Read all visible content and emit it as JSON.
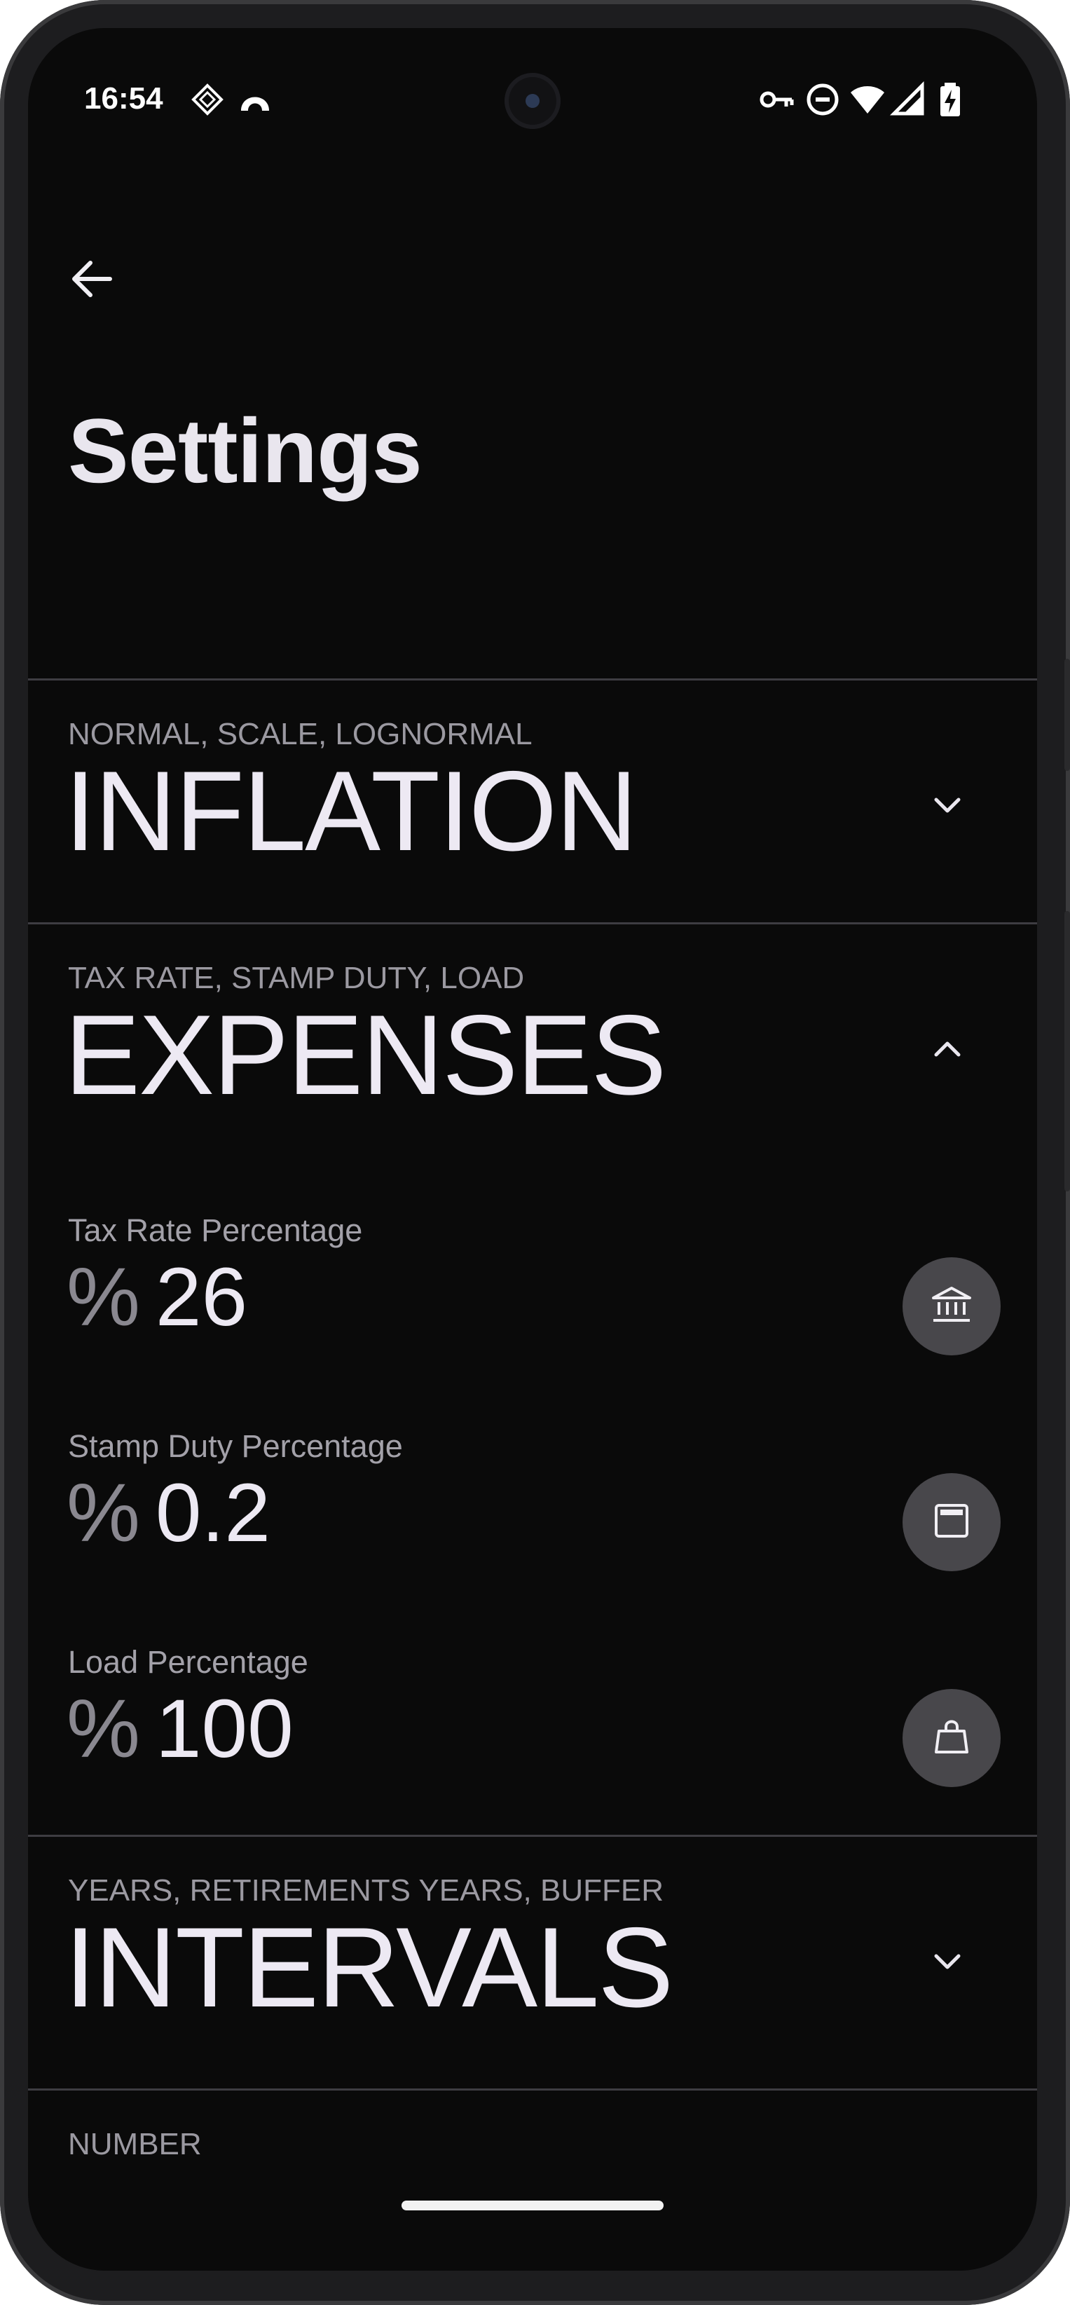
{
  "status_bar": {
    "time": "16:54",
    "left_icons": [
      "tag-icon",
      "arch-icon"
    ],
    "right_icons": [
      "vpn-key-icon",
      "do-not-disturb-icon",
      "wifi-icon",
      "signal-icon",
      "battery-charging-icon"
    ]
  },
  "app_bar": {
    "back_icon": "back-arrow-icon",
    "title": "Settings"
  },
  "sections": {
    "inflation": {
      "subtitle": "NORMAL, SCALE, LOGNORMAL",
      "title": "INFLATION",
      "expanded": false,
      "chevron_icon": "chevron-down-icon"
    },
    "expenses": {
      "subtitle": "TAX RATE, STAMP DUTY, LOAD",
      "title": "EXPENSES",
      "expanded": true,
      "chevron_icon": "chevron-up-icon",
      "fields": [
        {
          "label": "Tax Rate Percentage",
          "unit": "%",
          "value": "26",
          "icon": "bank-icon"
        },
        {
          "label": "Stamp Duty Percentage",
          "unit": "%",
          "value": "0.2",
          "icon": "document-icon"
        },
        {
          "label": "Load Percentage",
          "unit": "%",
          "value": "100",
          "icon": "shopping-bag-icon"
        }
      ]
    },
    "intervals": {
      "subtitle": "YEARS, RETIREMENTS YEARS, BUFFER",
      "title": "INTERVALS",
      "expanded": false,
      "chevron_icon": "chevron-down-icon"
    },
    "number": {
      "subtitle": "NUMBER"
    }
  },
  "colors": {
    "background": "#0a0a0a",
    "text_primary": "#ede9f3",
    "text_secondary": "#9b99a1",
    "divider": "#3e3d42",
    "icon_button": "#48474b"
  }
}
